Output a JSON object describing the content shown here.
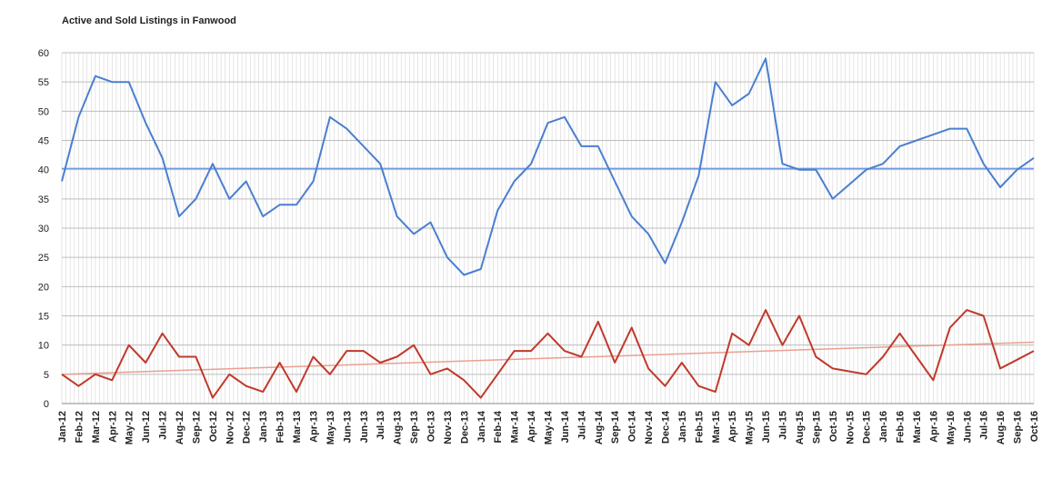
{
  "chart_data": {
    "type": "line",
    "title": "Active and Sold Listings in Fanwood",
    "categories": [
      "Jan-12",
      "Feb-12",
      "Mar-12",
      "Apr-12",
      "May-12",
      "Jun-12",
      "Jul-12",
      "Aug-12",
      "Sep-12",
      "Oct-12",
      "Nov-12",
      "Dec-12",
      "Jan-13",
      "Feb-13",
      "Mar-13",
      "Apr-13",
      "May-13",
      "Jun-13",
      "Jun-13",
      "Jul-13",
      "Aug-13",
      "Sep-13",
      "Oct-13",
      "Nov-13",
      "Dec-13",
      "Jan-14",
      "Feb-14",
      "Mar-14",
      "Apr-14",
      "May-14",
      "Jun-14",
      "Jul-14",
      "Aug-14",
      "Sep-14",
      "Oct-14",
      "Nov-14",
      "Dec-14",
      "Jan-15",
      "Feb-15",
      "Mar-15",
      "Apr-15",
      "May-15",
      "Jun-15",
      "Jul-15",
      "Aug-15",
      "Sep-15",
      "Oct-15",
      "Nov-15",
      "Dec-15",
      "Jan-16",
      "Feb-16",
      "Mar-16",
      "Apr-16",
      "May-16",
      "Jun-16",
      "Jul-16",
      "Aug-16",
      "Sep-16",
      "Oct-16"
    ],
    "series": [
      {
        "color": "#4a7fd0",
        "trend": [
          40.2,
          40.2
        ],
        "trend_color": "#6f9be0",
        "values": [
          38,
          49,
          56,
          55,
          55,
          48,
          42,
          32,
          35,
          41,
          35,
          38,
          32,
          34,
          34,
          38,
          49,
          47,
          44,
          41,
          32,
          29,
          31,
          25,
          22,
          23,
          33,
          38,
          41,
          48,
          49,
          44,
          44,
          38,
          32,
          29,
          24,
          31,
          39,
          55,
          51,
          53,
          59,
          41,
          40,
          40,
          35,
          37.5,
          40,
          41,
          44,
          45,
          46,
          47,
          47,
          41,
          37,
          40,
          42
        ]
      },
      {
        "color": "#c0392b",
        "trend": [
          5,
          10.5
        ],
        "trend_color": "#eaa090",
        "values": [
          5,
          3,
          5,
          4,
          10,
          7,
          12,
          8,
          8,
          1,
          5,
          3,
          2,
          7,
          2,
          8,
          5,
          9,
          9,
          7,
          8,
          10,
          5,
          6,
          4,
          1,
          5,
          9,
          9,
          12,
          9,
          8,
          14,
          7,
          13,
          6,
          3,
          7,
          3,
          2,
          12,
          10,
          16,
          10,
          15,
          8,
          6,
          5.5,
          5,
          8,
          12,
          8,
          4,
          13,
          16,
          15,
          6,
          7.5,
          9
        ]
      }
    ],
    "ylim": [
      0,
      60
    ],
    "yticks": [
      0,
      5,
      10,
      15,
      20,
      25,
      30,
      35,
      40,
      45,
      50,
      55,
      60
    ],
    "grid": true
  }
}
